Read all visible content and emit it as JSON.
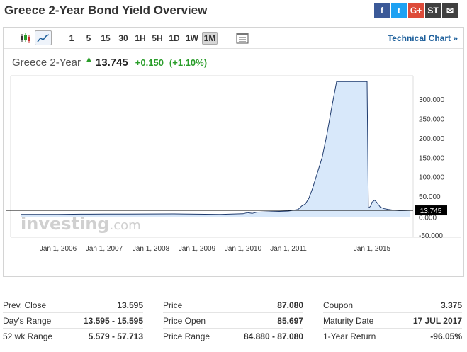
{
  "page": {
    "title": "Greece 2-Year Bond Yield Overview"
  },
  "share": [
    {
      "name": "facebook-icon",
      "glyph": "f",
      "color": "#3b5998"
    },
    {
      "name": "twitter-icon",
      "glyph": "t",
      "color": "#1da1f2"
    },
    {
      "name": "google-plus-icon",
      "glyph": "G+",
      "color": "#dd4b39"
    },
    {
      "name": "stocktwits-icon",
      "glyph": "ST",
      "color": "#404040"
    },
    {
      "name": "email-icon",
      "glyph": "✉",
      "color": "#404040"
    }
  ],
  "toolbar": {
    "timeframes": [
      "1",
      "5",
      "15",
      "30",
      "1H",
      "5H",
      "1D",
      "1W",
      "1M"
    ],
    "active": "1M",
    "technical_chart": "Technical Chart »"
  },
  "quote": {
    "name": "Greece 2-Year",
    "price": "13.745",
    "change": "+0.150",
    "change_pct": "(+1.10%)"
  },
  "chart_data": {
    "type": "area",
    "x_tick_labels": [
      "Jan 1, 2006",
      "Jan 1, 2007",
      "Jan 1, 2008",
      "Jan 1, 2009",
      "Jan 1, 2010",
      "Jan 1, 2011",
      "Jan 1, 2015"
    ],
    "x_ticks": [
      2006.0,
      2007.0,
      2008.0,
      2009.0,
      2010.0,
      2011.0,
      2015.0
    ],
    "y_tick_labels": [
      "300.000",
      "250.000",
      "200.000",
      "150.000",
      "100.000",
      "50.000",
      "0.000",
      "-50.000"
    ],
    "y_ticks": [
      300,
      250,
      200,
      150,
      100,
      50,
      0,
      -50
    ],
    "ylim": [
      -60,
      360
    ],
    "last_value_label": "13.745",
    "last_value": 13.745,
    "watermark": "investing.com",
    "grid": false,
    "colors": {
      "line": "#1f3b6e",
      "fill": "#d8e8fa",
      "last_line": "#000000"
    },
    "x": [
      2005.2,
      2006.0,
      2006.5,
      2007.0,
      2007.5,
      2008.0,
      2008.5,
      2009.0,
      2009.5,
      2010.0,
      2010.1,
      2010.2,
      2010.3,
      2010.5,
      2010.8,
      2011.0,
      2011.2,
      2011.4,
      2011.55,
      2011.7,
      2011.85,
      2012.0,
      2012.2,
      2012.4,
      2012.6,
      2012.8,
      2013.0,
      2014.2,
      2014.4,
      2014.6,
      2014.8,
      2015.0,
      2015.1,
      2015.2,
      2015.3,
      2015.45,
      2015.6,
      2015.8,
      2016.0,
      2016.2,
      2016.4
    ],
    "y": [
      3.4,
      3.5,
      4.0,
      4.3,
      4.2,
      4.5,
      4.6,
      3.9,
      3.5,
      5.0,
      8.0,
      6.0,
      9.0,
      10.0,
      11.0,
      12.0,
      14.0,
      16.0,
      25.0,
      30.0,
      45.0,
      70.0,
      110.0,
      150.0,
      210.0,
      280.0,
      345.0,
      345.0,
      20.0,
      22.0,
      25.0,
      35.0,
      40.0,
      32.0,
      22.0,
      18.0,
      16.0,
      14.0,
      13.0,
      13.5,
      13.745
    ]
  },
  "stats": [
    [
      {
        "label": "Prev. Close",
        "value": "13.595"
      },
      {
        "label": "Day's Range",
        "value": "13.595 - 15.595"
      },
      {
        "label": "52 wk Range",
        "value": "5.579 - 57.713"
      }
    ],
    [
      {
        "label": "Price",
        "value": "87.080"
      },
      {
        "label": "Price Open",
        "value": "85.697"
      },
      {
        "label": "Price Range",
        "value": "84.880 - 87.080"
      }
    ],
    [
      {
        "label": "Coupon",
        "value": "3.375"
      },
      {
        "label": "Maturity Date",
        "value": "17 JUL 2017"
      },
      {
        "label": "1-Year Return",
        "value": "-96.05%"
      }
    ]
  ]
}
